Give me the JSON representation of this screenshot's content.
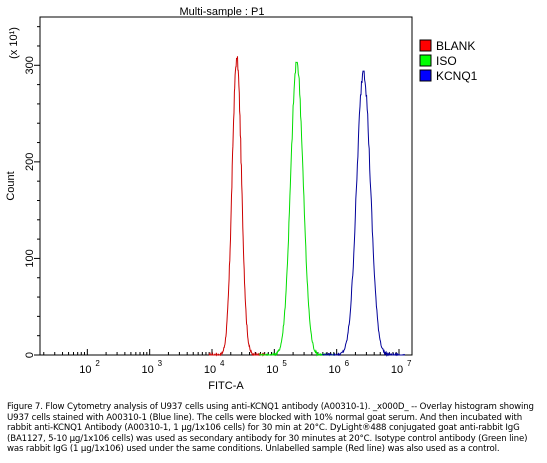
{
  "chart_data": {
    "type": "line",
    "title": "Multi-sample : P1",
    "xlabel": "FITC-A",
    "ylabel": "Count",
    "y_multiplier_label": "(x 10¹)",
    "x_scale": "log",
    "xlim": [
      10,
      10000000
    ],
    "ylim": [
      0,
      350
    ],
    "x_ticks": [
      100,
      1000,
      10000,
      100000,
      1000000,
      10000000
    ],
    "x_tick_labels": [
      {
        "base": "10",
        "exp": "2"
      },
      {
        "base": "10",
        "exp": "3"
      },
      {
        "base": "10",
        "exp": "4"
      },
      {
        "base": "10",
        "exp": "5"
      },
      {
        "base": "10",
        "exp": "6"
      },
      {
        "base": "10",
        "exp": "7"
      }
    ],
    "y_ticks": [
      0,
      100,
      200,
      300
    ],
    "y_tick_labels": [
      "0",
      "100",
      "200",
      "300"
    ],
    "grid": false,
    "legend_position": "right",
    "series": [
      {
        "name": "BLANK",
        "color": "#cc0000",
        "legend_color": "#ff0000",
        "peak_x": 25000,
        "peak_y": 307,
        "log_sigma": 0.075
      },
      {
        "name": "ISO",
        "color": "#00dd00",
        "legend_color": "#00ff00",
        "peak_x": 230000,
        "peak_y": 303,
        "log_sigma": 0.1
      },
      {
        "name": "KCNQ1",
        "color": "#000099",
        "legend_color": "#0000ff",
        "peak_x": 2700000,
        "peak_y": 294,
        "log_sigma": 0.11
      }
    ]
  },
  "caption": {
    "lines": [
      "Figure 7. Flow Cytometry analysis of U937 cells using anti-KCNQ1 antibody (A00310-1). _x000D_ -- Overlay histogram showing",
      "U937 cells stained with A00310-1 (Blue line). The cells were blocked with 10% normal goat serum. And then incubated with",
      "rabbit anti-KCNQ1 Antibody (A00310-1, 1 μg/1x106 cells) for 30 min at 20°C. DyLight®488 conjugated goat anti-rabbit IgG",
      "(BA1127, 5-10 μg/1x106 cells) was used as secondary antibody for 30 minutes at 20°C. Isotype control antibody (Green line)",
      "was rabbit IgG (1 μg/1x106) used under the same conditions. Unlabelled sample (Red line) was also used as a control."
    ]
  }
}
